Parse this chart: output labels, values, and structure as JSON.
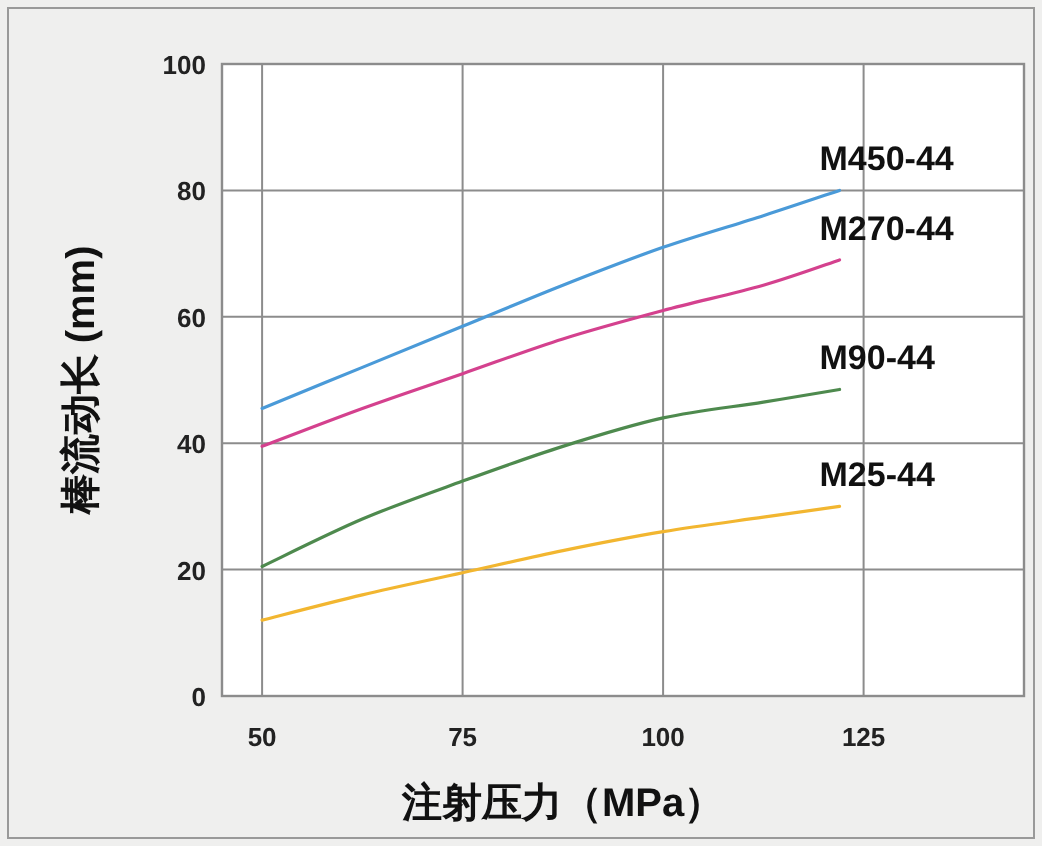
{
  "chart_data": {
    "type": "line",
    "xlabel": "注射压力（MPa）",
    "ylabel": "棒流动长 (mm)",
    "x": [
      50,
      62.5,
      75,
      87.5,
      100,
      112.5,
      122
    ],
    "series": [
      {
        "name": "M450-44",
        "color": "#4a9ad8",
        "values": [
          45.5,
          52,
          58.5,
          65,
          71,
          76,
          80
        ]
      },
      {
        "name": "M270-44",
        "color": "#d4418e",
        "values": [
          39.5,
          45.5,
          51,
          56.5,
          61,
          65,
          69
        ]
      },
      {
        "name": "M90-44",
        "color": "#4e8a4e",
        "values": [
          20.5,
          28,
          34,
          39.5,
          44,
          46.5,
          48.5
        ]
      },
      {
        "name": "M25-44",
        "color": "#f2b630",
        "values": [
          12,
          16,
          19.5,
          23,
          26,
          28.3,
          30
        ]
      }
    ],
    "xlim": [
      45,
      145
    ],
    "xticks": [
      50,
      75,
      100,
      125
    ],
    "ylim": [
      0,
      100
    ],
    "yticks": [
      0,
      20,
      40,
      60,
      80,
      100
    ],
    "grid": true,
    "line_style": "solid",
    "marker": "none"
  }
}
